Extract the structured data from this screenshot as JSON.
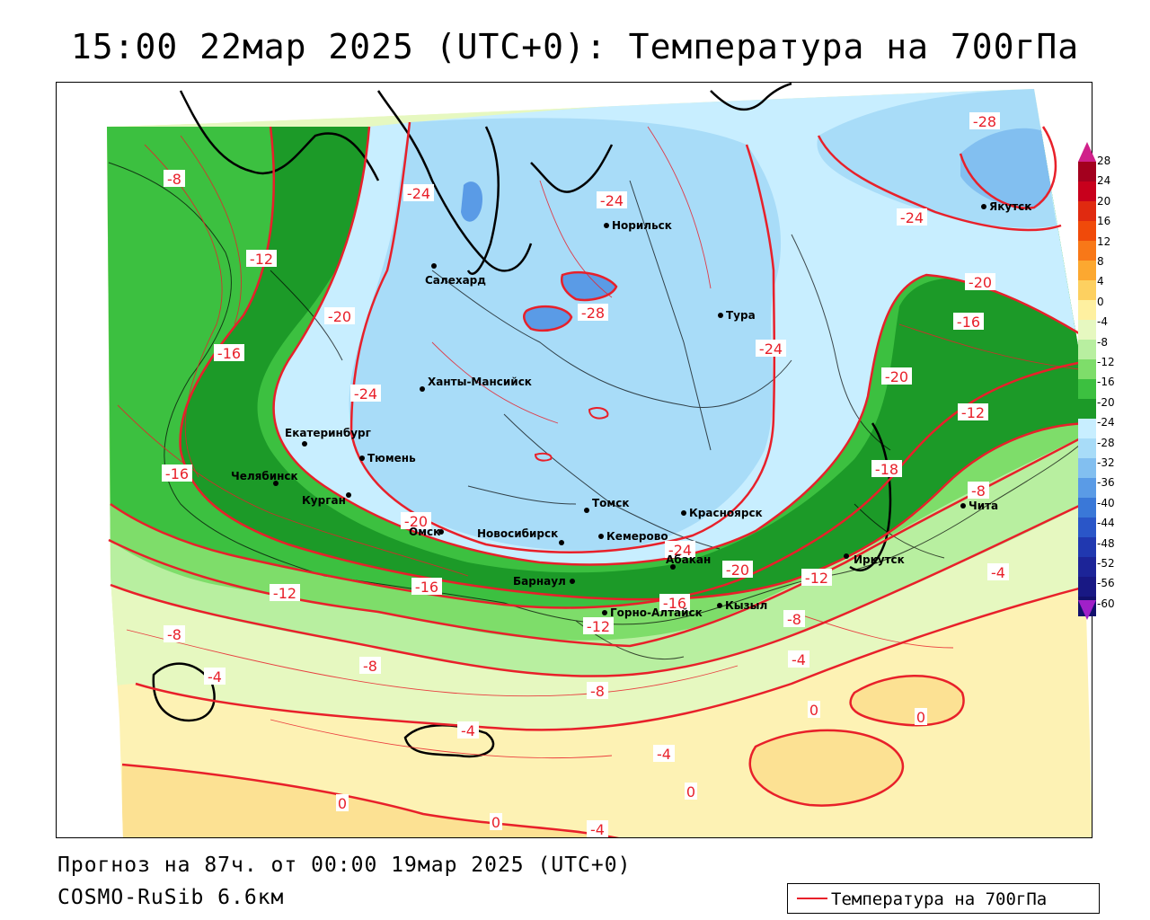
{
  "header": {
    "title": "15:00 22мар 2025 (UTC+0): Температура на 700гПа"
  },
  "footer": {
    "forecast": "Прогноз на 87ч. от 00:00 19мар 2025 (UTC+0)",
    "model": "COSMO-RuSib 6.6км"
  },
  "legend": {
    "label": "Температура на 700гПа",
    "line_color": "#e8202a"
  },
  "colorbar": {
    "labels": [
      "28",
      "24",
      "20",
      "16",
      "12",
      "8",
      "4",
      "0",
      "-4",
      "-8",
      "-12",
      "-16",
      "-20",
      "-24",
      "-28",
      "-32",
      "-36",
      "-40",
      "-44",
      "-48",
      "-52",
      "-56",
      "-60"
    ],
    "colors": [
      "#a3001e",
      "#c8001c",
      "#e02a10",
      "#f04a0a",
      "#f87818",
      "#fca830",
      "#fdd060",
      "#fef0a0",
      "#e6f8c0",
      "#b8efa0",
      "#7edd6a",
      "#3cc040",
      "#1c9a28",
      "#c8eeff",
      "#a8dcf8",
      "#82bff0",
      "#5a9be6",
      "#3a78d8",
      "#2a56c8",
      "#2038b0",
      "#1c2498",
      "#181884",
      "#12106c"
    ],
    "top_arrow_color": "#d0208a",
    "bottom_arrow_color": "#a020c8"
  },
  "cities": [
    {
      "name": "Норильск"
    },
    {
      "name": "Якутск"
    },
    {
      "name": "Салехард"
    },
    {
      "name": "Тура"
    },
    {
      "name": "Ханты-Мансийск"
    },
    {
      "name": "Екатеринбург"
    },
    {
      "name": "Тюмень"
    },
    {
      "name": "Челябинск"
    },
    {
      "name": "Курган"
    },
    {
      "name": "Омск"
    },
    {
      "name": "Томск"
    },
    {
      "name": "Красноярск"
    },
    {
      "name": "Новосибирск"
    },
    {
      "name": "Кемерово"
    },
    {
      "name": "Абакан"
    },
    {
      "name": "Барнаул"
    },
    {
      "name": "Горно-Алтайск"
    },
    {
      "name": "Кызыл"
    },
    {
      "name": "Иркутск"
    },
    {
      "name": "Чита"
    }
  ],
  "contour_labels": [
    "-28",
    "-24",
    "-24",
    "-8",
    "-24",
    "-12",
    "-20",
    "-20",
    "-28",
    "-16",
    "-24",
    "-16",
    "-24",
    "-20",
    "-12",
    "-16",
    "-18",
    "-8",
    "-20",
    "-20",
    "-24",
    "-12",
    "-4",
    "-12",
    "-16",
    "-8",
    "-16",
    "-12",
    "-8",
    "-4",
    "-8",
    "-4",
    "-8",
    "-4",
    "-4",
    "0",
    "0",
    "0",
    "0",
    "0",
    "-4"
  ]
}
